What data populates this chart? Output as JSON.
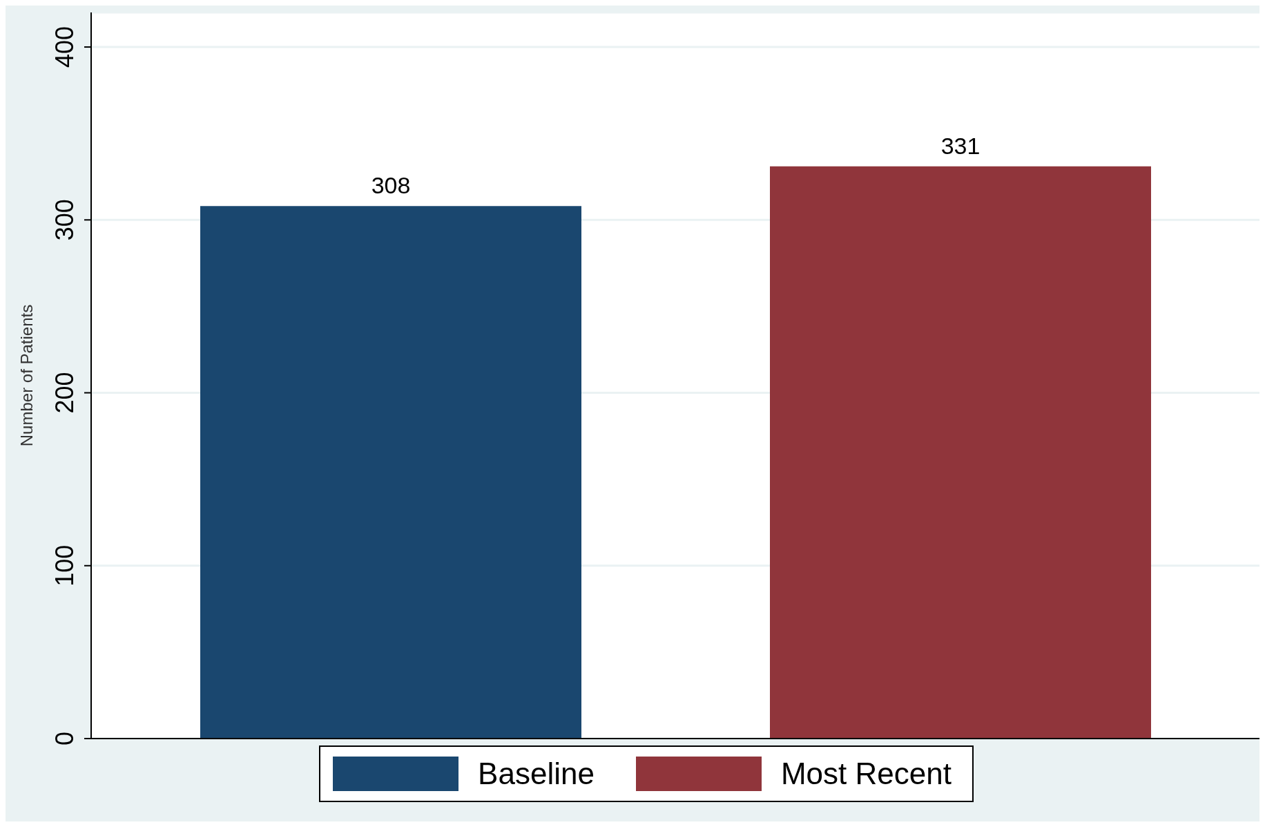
{
  "chart_data": {
    "type": "bar",
    "ylabel": "Number of Patients",
    "categories": [
      null
    ],
    "series": [
      {
        "name": "Baseline",
        "color": "#1a476f",
        "values": [
          308
        ]
      },
      {
        "name": "Most Recent",
        "color": "#90353b",
        "values": [
          331
        ]
      }
    ],
    "ylim": [
      0,
      420
    ],
    "yticks": [
      0,
      100,
      200,
      300,
      400
    ],
    "grid": "y",
    "legend": "bottom",
    "data_labels": true
  }
}
